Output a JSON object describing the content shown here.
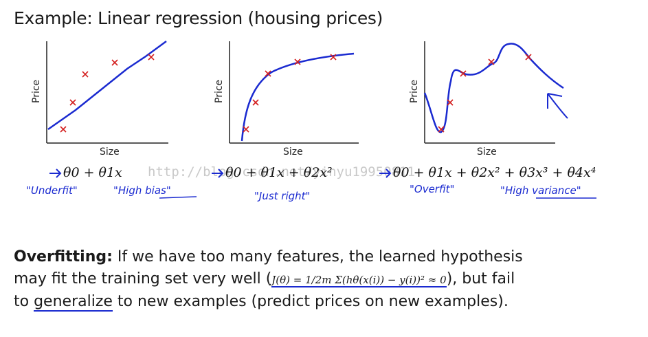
{
  "title": "Example: Linear regression (housing prices)",
  "panels": [
    {
      "ylabel": "Price",
      "xlabel": "Size",
      "formula": "θ0 + θ1x",
      "notes": [
        "\"Underfit\"",
        "\"High bias\""
      ]
    },
    {
      "ylabel": "Price",
      "xlabel": "Size",
      "formula": "θ0 + θ1x + θ2x²",
      "notes": [
        "\"Just right\""
      ]
    },
    {
      "ylabel": "Price",
      "xlabel": "Size",
      "formula": "θ0 + θ1x + θ2x² + θ3x³ + θ4x⁴",
      "notes": [
        "\"Overfit\"",
        "\"High variance\""
      ]
    }
  ],
  "watermark": "http://blog.csdn.net/yinyu19950811",
  "paragraph": {
    "lead": "Overfitting:",
    "line1": " If we have too many features, the learned hypothesis",
    "line2a": "may fit the training set very well (",
    "equation": "J(θ) = 1/2m Σ(hθ(x(i)) − y(i))² ≈ 0",
    "line2b": "), but fail",
    "line3a": "to ",
    "generalize": "generalize",
    "line3b": " to new examples (predict prices on new examples)."
  }
}
